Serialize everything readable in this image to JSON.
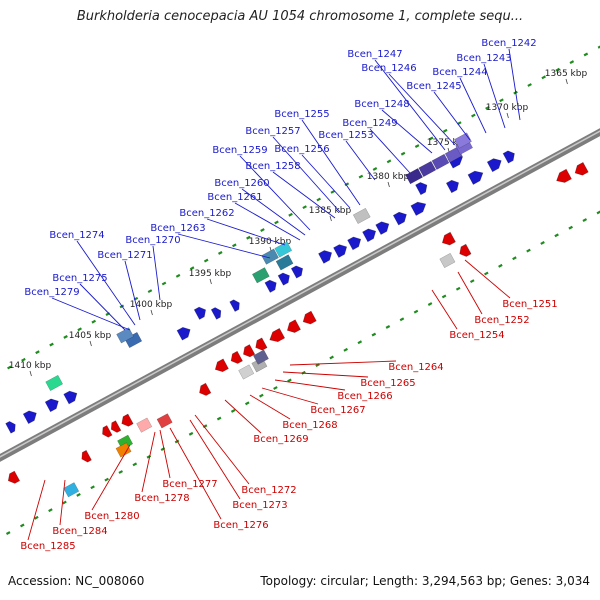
{
  "title": "Burkholderia cenocepacia AU 1054 chromosome 1, complete sequ...",
  "accession": "Accession: NC_008060",
  "topology": "Topology: circular; Length: 3,294,563 bp; Genes: 3,034",
  "colors": {
    "forward": "#1a1acc",
    "reverse": "#dd0000",
    "backbone": "#888888",
    "tick": "#1e8c1e"
  },
  "kbp_labels": [
    "1365 kbp",
    "1370 kbp",
    "1375 kbp",
    "1380 kbp",
    "1385 kbp",
    "1390 kbp",
    "1395 kbp",
    "1400 kbp",
    "1405 kbp",
    "1410 kbp"
  ],
  "forward_genes": [
    "Bcen_1242",
    "Bcen_1243",
    "Bcen_1244",
    "Bcen_1245",
    "Bcen_1246",
    "Bcen_1247",
    "Bcen_1248",
    "Bcen_1249",
    "Bcen_1253",
    "Bcen_1255",
    "Bcen_1256",
    "Bcen_1257",
    "Bcen_1258",
    "Bcen_1259",
    "Bcen_1260",
    "Bcen_1261",
    "Bcen_1262",
    "Bcen_1263",
    "Bcen_1270",
    "Bcen_1271",
    "Bcen_1274",
    "Bcen_1275",
    "Bcen_1279"
  ],
  "reverse_genes": [
    "Bcen_1251",
    "Bcen_1252",
    "Bcen_1254",
    "Bcen_1264",
    "Bcen_1265",
    "Bcen_1266",
    "Bcen_1267",
    "Bcen_1268",
    "Bcen_1269",
    "Bcen_1272",
    "Bcen_1273",
    "Bcen_1276",
    "Bcen_1277",
    "Bcen_1278",
    "Bcen_1280",
    "Bcen_1284",
    "Bcen_1285"
  ]
}
